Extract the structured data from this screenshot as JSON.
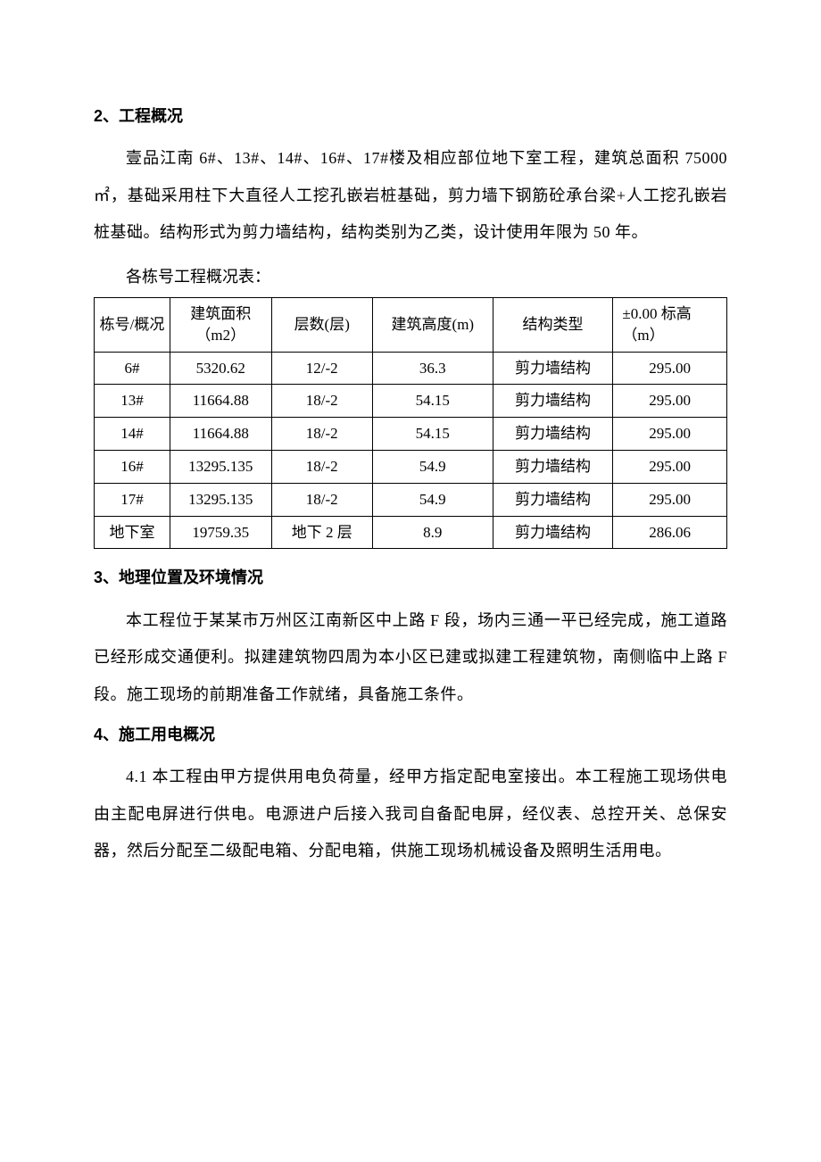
{
  "section2": {
    "heading": "2、工程概况",
    "paragraph": "壹品江南 6#、13#、14#、16#、17#楼及相应部位地下室工程，建筑总面积 75000㎡，基础采用柱下大直径人工挖孔嵌岩桩基础，剪力墙下钢筋砼承台梁+人工挖孔嵌岩桩基础。结构形式为剪力墙结构，结构类别为乙类，设计使用年限为 50 年。",
    "table_caption": "各栋号工程概况表：",
    "table": {
      "columns": [
        "栋号/概况",
        "建筑面积（m2）",
        "层数(层)",
        "建筑高度(m)",
        "结构类型",
        "±0.00 标高（m）"
      ],
      "rows": [
        [
          "6#",
          "5320.62",
          "12/-2",
          "36.3",
          "剪力墙结构",
          "295.00"
        ],
        [
          "13#",
          "11664.88",
          "18/-2",
          "54.15",
          "剪力墙结构",
          "295.00"
        ],
        [
          "14#",
          "11664.88",
          "18/-2",
          "54.15",
          "剪力墙结构",
          "295.00"
        ],
        [
          "16#",
          "13295.135",
          "18/-2",
          "54.9",
          "剪力墙结构",
          "295.00"
        ],
        [
          "17#",
          "13295.135",
          "18/-2",
          "54.9",
          "剪力墙结构",
          "295.00"
        ],
        [
          "地下室",
          "19759.35",
          "地下 2 层",
          "8.9",
          "剪力墙结构",
          "286.06"
        ]
      ]
    }
  },
  "section3": {
    "heading": "3、地理位置及环境情况",
    "paragraph": "本工程位于某某市万州区江南新区中上路 F 段，场内三通一平已经完成，施工道路已经形成交通便利。拟建建筑物四周为本小区已建或拟建工程建筑物，南侧临中上路 F 段。施工现场的前期准备工作就绪，具备施工条件。"
  },
  "section4": {
    "heading": "4、施工用电概况",
    "paragraph": "4.1 本工程由甲方提供用电负荷量，经甲方指定配电室接出。本工程施工现场供电由主配电屏进行供电。电源进户后接入我司自备配电屏，经仪表、总控开关、总保安器，然后分配至二级配电箱、分配电箱，供施工现场机械设备及照明生活用电。"
  },
  "styling": {
    "background_color": "#ffffff",
    "text_color": "#000000",
    "border_color": "#000000",
    "body_fontsize": 18,
    "heading_fontsize": 18,
    "table_fontsize": 17,
    "column_widths_pct": [
      12,
      16,
      16,
      19,
      19,
      18
    ]
  }
}
